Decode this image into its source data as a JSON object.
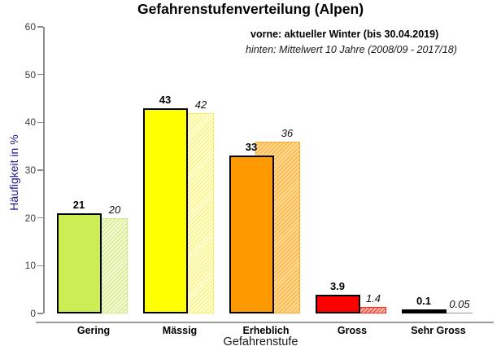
{
  "chart_data": {
    "type": "bar",
    "title": "Gefahrenstufenverteilung (Alpen)",
    "xlabel": "Gefahrenstufe",
    "ylabel": "Häufigkeit in %",
    "ylim": [
      0,
      60
    ],
    "yticks": [
      0,
      10,
      20,
      30,
      40,
      50,
      60
    ],
    "grid": false,
    "legend_position": "top-right",
    "legend": {
      "front_label": "vorne: aktueller Winter (bis 30.04.2019)",
      "back_label": "hinten: Mittelwert 10 Jahre (2008/09 - 2017/18)"
    },
    "categories": [
      "Gering",
      "Mässig",
      "Erheblich",
      "Gross",
      "Sehr Gross"
    ],
    "series": [
      {
        "name": "aktueller Winter (bis 30.04.2019)",
        "position": "front",
        "values": [
          21,
          43,
          33,
          3.9,
          0.1
        ],
        "value_labels": [
          "21",
          "43",
          "33",
          "3.9",
          "0.1"
        ]
      },
      {
        "name": "Mittelwert 10 Jahre (2008/09 - 2017/18)",
        "position": "back",
        "values": [
          20,
          42,
          36,
          1.4,
          0.05
        ],
        "value_labels": [
          "20",
          "42",
          "36",
          "1.4",
          "0.05"
        ]
      }
    ],
    "colors": {
      "front_fill": [
        "#ccee55",
        "#ffff00",
        "#ff9900",
        "#ff0000",
        "#000000"
      ],
      "back_base": [
        "#f0f9d0",
        "#ffffd8",
        "#ffd88f",
        "#ffb3a6",
        "#999999"
      ],
      "back_stripe": [
        "#cdea7e",
        "#ffef60",
        "#ffab2e",
        "#ff2a1a",
        "#999999"
      ],
      "axis": "#8c8c8c",
      "y_label_color": "#1a1a8c"
    }
  }
}
